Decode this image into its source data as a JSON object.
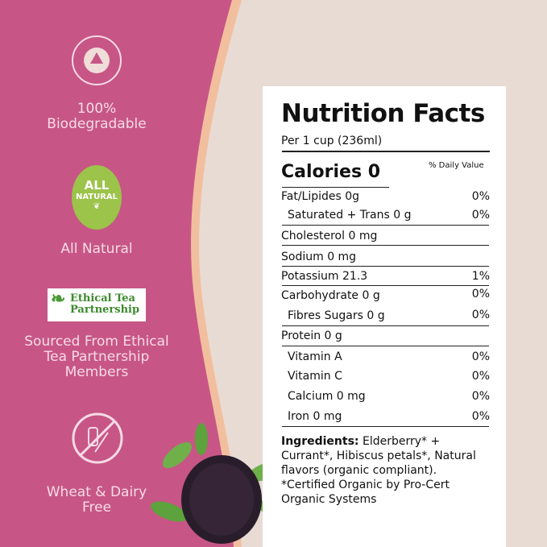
{
  "features": [
    {
      "badge": "BIODEGRADABLE",
      "label_line1": "100%",
      "label_line2": "Biodegradable"
    },
    {
      "badge_line1": "ALL",
      "badge_line2": "NATURAL",
      "label": "All Natural"
    },
    {
      "logo_line1": "Ethical Tea",
      "logo_line2": "Partnership",
      "label_line1": "Sourced From Ethical",
      "label_line2": "Tea Partnership",
      "label_line3": "Members"
    },
    {
      "icon": "no-wheat-dairy-icon",
      "label_line1": "Wheat & Dairy",
      "label_line2": "Free"
    }
  ],
  "nutrition": {
    "title": "Nutrition Facts",
    "serving": "Per 1 cup (236ml)",
    "calories": "Calories 0",
    "dv_header": "% Daily Value",
    "rows": [
      {
        "label": "Fat/Lipides 0g",
        "dv": "0%"
      },
      {
        "label": "Saturated + Trans 0 g",
        "dv": "0%"
      },
      {
        "label": "Cholesterol 0 mg",
        "dv": ""
      },
      {
        "label": "Sodium 0 mg",
        "dv": ""
      },
      {
        "label": "Potassium 21.3",
        "dv": "1%"
      },
      {
        "label": "Carbohydrate 0 g",
        "dv": "0%"
      },
      {
        "label": "Fibres Sugars 0 g",
        "dv": "0%"
      },
      {
        "label": "Protein 0 g",
        "dv": ""
      },
      {
        "label": "Vitamin A",
        "dv": "0%"
      },
      {
        "label": "Vitamin C",
        "dv": "0%"
      },
      {
        "label": "Calcium 0 mg",
        "dv": "0%"
      },
      {
        "label": "Iron 0 mg",
        "dv": "0%"
      }
    ],
    "ingredients_label": "Ingredients:",
    "ingredients_text": "Elderberry* + Currant*, Hibiscus petals*, Natural flavors (organic compliant).",
    "certification": "*Certified Organic by Pro-Cert Organic Systems"
  },
  "colors": {
    "pink": "#c75686",
    "peach": "#f2bf9e",
    "beige": "#e8dbd4",
    "green": "#9cc34a"
  }
}
